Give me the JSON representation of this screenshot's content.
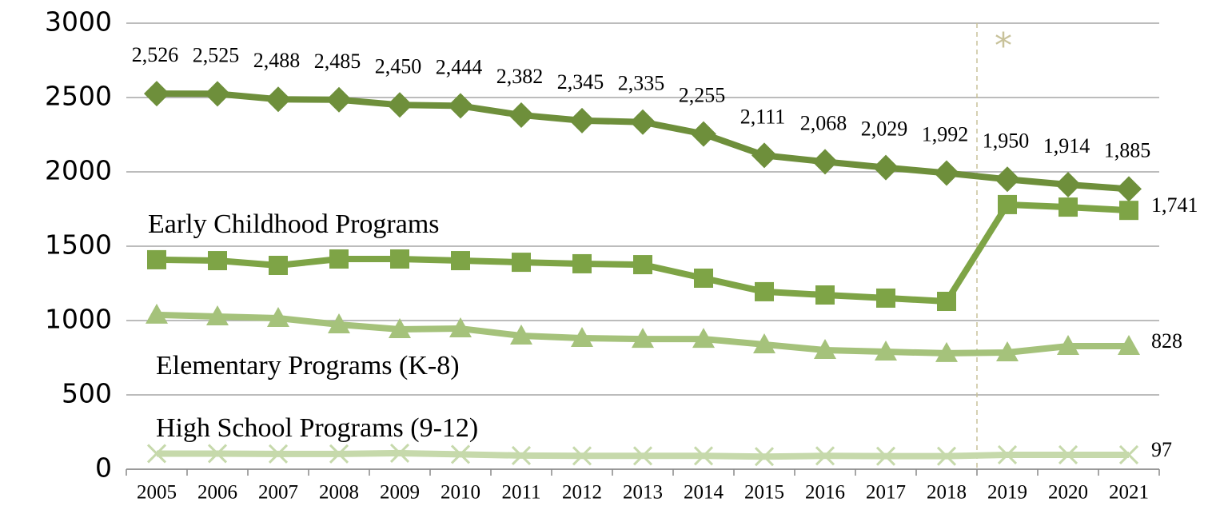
{
  "chart_data": {
    "type": "line",
    "categories": [
      "2005",
      "2006",
      "2007",
      "2008",
      "2009",
      "2010",
      "2011",
      "2012",
      "2013",
      "2014",
      "2015",
      "2016",
      "2017",
      "2018",
      "2019",
      "2020",
      "2021"
    ],
    "ylim": [
      0,
      3000
    ],
    "yticks": [
      0,
      500,
      1000,
      1500,
      2000,
      2500,
      3000
    ],
    "grid": true,
    "annotation": "*",
    "series": [
      {
        "color": "#6e8f3b",
        "marker": "diamond",
        "values": [
          2526,
          2525,
          2488,
          2485,
          2450,
          2444,
          2382,
          2345,
          2335,
          2255,
          2111,
          2068,
          2029,
          1992,
          1950,
          1914,
          1885
        ],
        "value_labels": [
          "2,526",
          "2,525",
          "2,488",
          "2,485",
          "2,450",
          "2,444",
          "2,382",
          "2,345",
          "2,335",
          "2,255",
          "2,111",
          "2,068",
          "2,029",
          "1,992",
          "1,950",
          "1,914",
          "1,885"
        ]
      },
      {
        "name": "Early Childhood Programs",
        "color": "#7ea446",
        "marker": "square",
        "values": [
          1409,
          1403,
          1371,
          1414,
          1414,
          1403,
          1392,
          1382,
          1376,
          1285,
          1194,
          1172,
          1151,
          1129,
          1780,
          1763,
          1741
        ],
        "value_labels": [
          null,
          null,
          null,
          null,
          null,
          null,
          null,
          null,
          null,
          null,
          null,
          null,
          null,
          null,
          null,
          null,
          "1,741"
        ]
      },
      {
        "name": "Elementary Programs (K-8)",
        "color": "#a5c27b",
        "marker": "triangle",
        "values": [
          1038,
          1027,
          1016,
          973,
          941,
          946,
          898,
          882,
          876,
          876,
          839,
          801,
          790,
          780,
          785,
          828,
          828
        ],
        "value_labels": [
          null,
          null,
          null,
          null,
          null,
          null,
          null,
          null,
          null,
          null,
          null,
          null,
          null,
          null,
          null,
          null,
          "828"
        ]
      },
      {
        "name": "High School Programs (9-12)",
        "color": "#c6d9ab",
        "marker": "x",
        "values": [
          105,
          105,
          103,
          103,
          108,
          100,
          92,
          90,
          90,
          90,
          85,
          90,
          88,
          88,
          97,
          97,
          97
        ],
        "value_labels": [
          null,
          null,
          null,
          null,
          null,
          null,
          null,
          null,
          null,
          null,
          null,
          null,
          null,
          null,
          null,
          null,
          "97"
        ]
      }
    ]
  }
}
